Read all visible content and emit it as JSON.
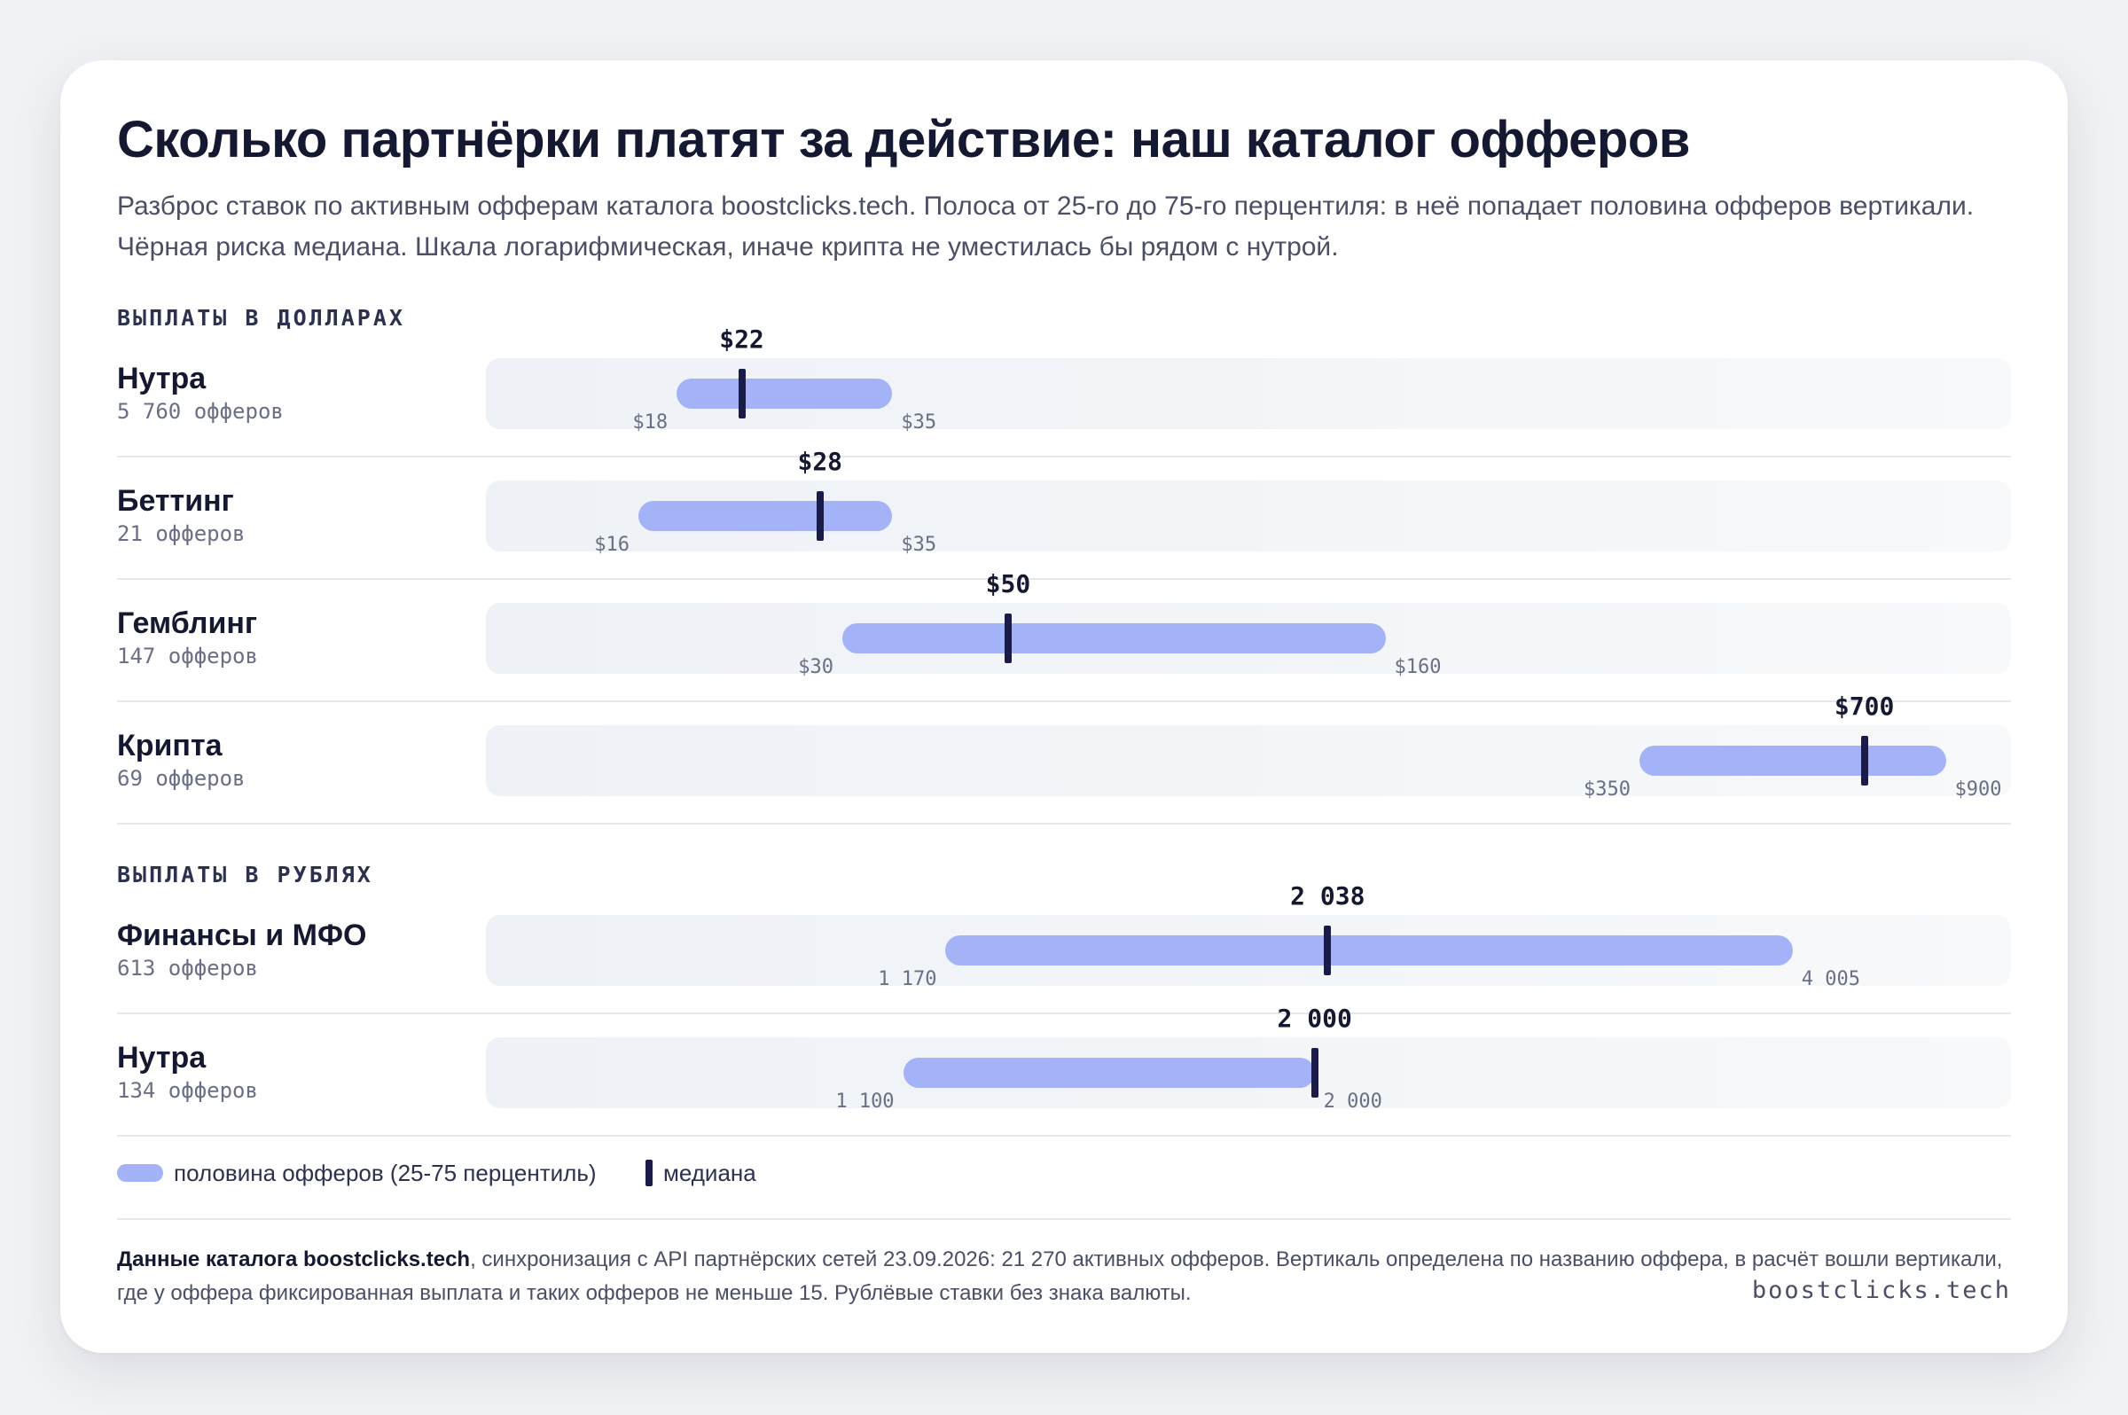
{
  "title": "Сколько партнёрки платят за действие: наш каталог офферов",
  "subtitle": "Разброс ставок по активным офферам каталога boostclicks.tech. Полоса от 25-го до 75-го перцентиля: в неё попадает половина офферов вертикали. Чёрная риска медиана. Шкала логарифмическая, иначе крипта не уместилась бы рядом с нутрой.",
  "colors": {
    "bar": "#a4b2f8",
    "median": "#1b1b4a",
    "track": "#eef1f6"
  },
  "chart_data": [
    {
      "type": "range-bar",
      "section_label": "ВЫПЛАТЫ В ДОЛЛАРАХ",
      "scale": "log",
      "currency": "$",
      "xlim": [
        10,
        1100
      ],
      "rows": [
        {
          "name": "Нутра",
          "count": "5 760 офферов",
          "p25": 18,
          "median": 22,
          "p75": 35,
          "p25_label": "$18",
          "median_label": "$22",
          "p75_label": "$35"
        },
        {
          "name": "Беттинг",
          "count": "21 офферов",
          "p25": 16,
          "median": 28,
          "p75": 35,
          "p25_label": "$16",
          "median_label": "$28",
          "p75_label": "$35"
        },
        {
          "name": "Гемблинг",
          "count": "147 офферов",
          "p25": 30,
          "median": 50,
          "p75": 160,
          "p25_label": "$30",
          "median_label": "$50",
          "p75_label": "$160"
        },
        {
          "name": "Крипта",
          "count": "69 офферов",
          "p25": 350,
          "median": 700,
          "p75": 900,
          "p25_label": "$350",
          "median_label": "$700",
          "p75_label": "$900"
        }
      ]
    },
    {
      "type": "range-bar",
      "section_label": "ВЫПЛАТЫ В РУБЛЯХ",
      "scale": "log",
      "currency": "",
      "xlim": [
        600,
        5500
      ],
      "rows": [
        {
          "name": "Финансы и МФО",
          "count": "613 офферов",
          "p25": 1170,
          "median": 2038,
          "p75": 4005,
          "p25_label": "1 170",
          "median_label": "2 038",
          "p75_label": "4 005"
        },
        {
          "name": "Нутра",
          "count": "134 офферов",
          "p25": 1100,
          "median": 2000,
          "p75": 2000,
          "p25_label": "1 100",
          "median_label": "2 000",
          "p75_label": "2 000"
        }
      ]
    }
  ],
  "legend": {
    "bar_label": "половина офферов (25-75 перцентиль)",
    "median_label": "медиана"
  },
  "footer": {
    "bold": "Данные каталога boostclicks.tech",
    "text": ", синхронизация с API партнёрских сетей 23.09.2026: 21 270 активных офферов. Вертикаль определена по названию оффера, в расчёт вошли вертикали, где у оффера фиксированная выплата и таких офферов не меньше 15. Рублёвые ставки без знака валюты."
  },
  "brand": "boostclicks.tech"
}
